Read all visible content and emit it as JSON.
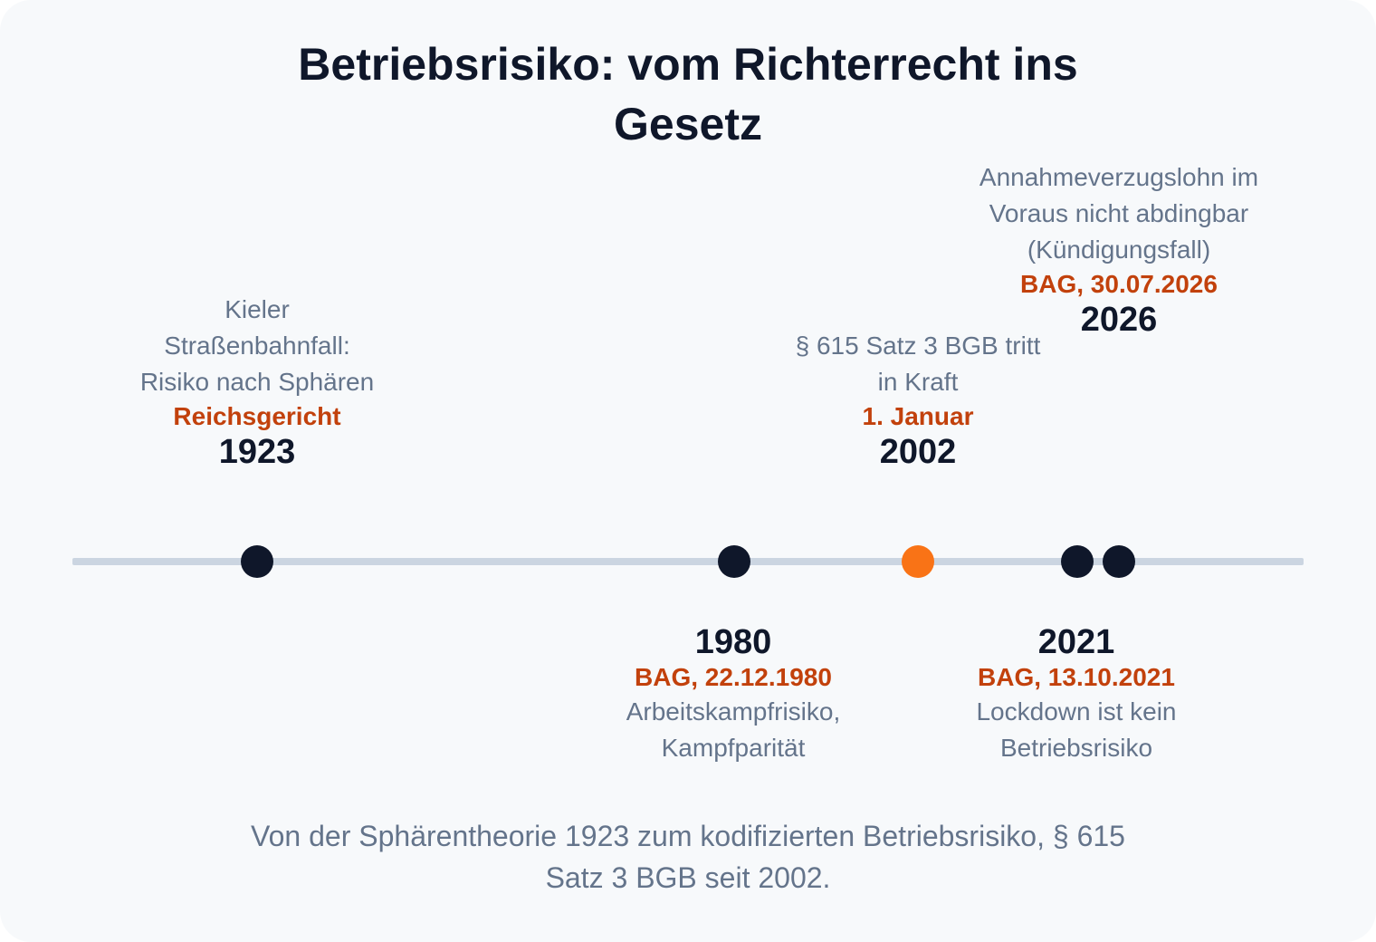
{
  "title": "Betriebsrisiko: vom Richterrecht ins Gesetz",
  "events": [
    {
      "year": "1923",
      "source": "Reichsgericht",
      "description": "Kieler Straßenbahnfall: Risiko nach Sphären",
      "highlight": false
    },
    {
      "year": "1980",
      "source": "BAG, 22.12.1980",
      "description": "Arbeitskampfrisiko, Kampfparität",
      "highlight": false
    },
    {
      "year": "2002",
      "source": "1. Januar",
      "description": "§ 615 Satz 3 BGB tritt in Kraft",
      "highlight": true
    },
    {
      "year": "2021",
      "source": "BAG, 13.10.2021",
      "description": "Lockdown ist kein Betriebsrisiko",
      "highlight": false
    },
    {
      "year": "2026",
      "source": "BAG, 30.07.2026",
      "description": "Annahmeverzugslohn im Voraus nicht abdingbar (Kündigungsfall)",
      "highlight": false
    }
  ],
  "caption": "Von der Sphärentheorie 1923 zum kodifizierten Betriebsrisiko, § 615 Satz 3 BGB seit 2002.",
  "colors": {
    "dot": "#0f172a",
    "highlight_dot": "#f97316",
    "axis": "#cbd5e1",
    "source_text": "#c2410c"
  }
}
